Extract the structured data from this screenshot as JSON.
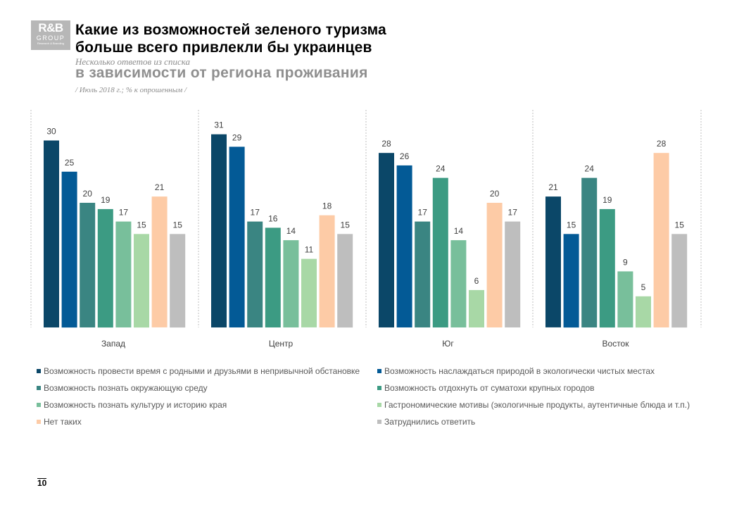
{
  "logo": {
    "line1": "R&B",
    "line2": "GROUP",
    "line3": "Research & Branding"
  },
  "header": {
    "title_line1": "Какие из возможностей зеленого туризма",
    "title_line2": "больше всего привлекли бы украинцев",
    "note": "Несколько ответов из списка",
    "subtitle": "в зависимости от региона проживания",
    "date_note": "/ Июль 2018 г.; % к опрошенным /"
  },
  "page_number": "10",
  "chart_data": {
    "type": "bar",
    "title": "Какие из возможностей зеленого туризма больше всего привлекли бы украинцев в зависимости от региона проживания",
    "xlabel": "",
    "ylabel": "% к опрошенным",
    "ylim": [
      0,
      35
    ],
    "grid": false,
    "legend_position": "bottom",
    "categories": [
      "Запад",
      "Центр",
      "Юг",
      "Восток"
    ],
    "series": [
      {
        "name": "Возможность провести время с родными и друзьями в непривычной обстановке",
        "color": "#0b4768",
        "values": [
          30,
          31,
          28,
          21
        ]
      },
      {
        "name": "Возможность наслаждаться природой в экологически чистых местах",
        "color": "#035a96",
        "values": [
          25,
          29,
          26,
          15
        ]
      },
      {
        "name": "Возможность познать окружающую среду",
        "color": "#3a8582",
        "values": [
          20,
          17,
          17,
          24
        ]
      },
      {
        "name": "Возможность отдохнуть от суматохи крупных городов",
        "color": "#3c9b83",
        "values": [
          19,
          16,
          24,
          19
        ]
      },
      {
        "name": "Возможность познать культуру и историю края",
        "color": "#78bf9b",
        "values": [
          17,
          14,
          14,
          9
        ]
      },
      {
        "name": "Гастрономические мотивы (экологичные продукты, аутентичные блюда и т.п.)",
        "color": "#a8d8a6",
        "values": [
          15,
          11,
          6,
          5
        ]
      },
      {
        "name": "Нет таких",
        "color": "#fdcba6",
        "values": [
          21,
          18,
          20,
          28
        ]
      },
      {
        "name": "Затруднились ответить",
        "color": "#bebebe",
        "values": [
          15,
          15,
          17,
          15
        ]
      }
    ]
  }
}
